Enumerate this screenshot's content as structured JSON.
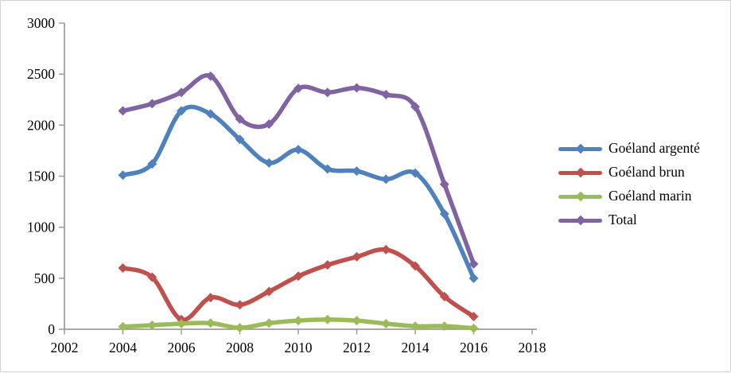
{
  "chart": {
    "background": "#ffffff",
    "border_color": "#d3d0d0",
    "axis_color": "#8c8c8c",
    "tick_color": "#9a9a9a",
    "label_color": "#000000"
  },
  "chart_data": {
    "type": "line",
    "smoothed": true,
    "marker": "diamond",
    "title": "",
    "xlabel": "",
    "ylabel": "",
    "grid": false,
    "legend_position": "right",
    "xlim": [
      2002,
      2018
    ],
    "ylim": [
      0,
      3000
    ],
    "x_ticks": [
      2002,
      2004,
      2006,
      2008,
      2010,
      2012,
      2014,
      2016,
      2018
    ],
    "y_ticks": [
      0,
      500,
      1000,
      1500,
      2000,
      2500,
      3000
    ],
    "x": [
      2004,
      2005,
      2006,
      2007,
      2008,
      2009,
      2010,
      2011,
      2012,
      2013,
      2014,
      2015,
      2016
    ],
    "series": [
      {
        "name": "Goéland argenté",
        "color": "#4F81BD",
        "values": [
          1510,
          1620,
          2140,
          2110,
          1860,
          1630,
          1760,
          1570,
          1550,
          1470,
          1530,
          1130,
          500
        ]
      },
      {
        "name": "Goéland brun",
        "color": "#C0504D",
        "values": [
          600,
          510,
          95,
          310,
          240,
          370,
          520,
          630,
          710,
          780,
          620,
          320,
          125
        ]
      },
      {
        "name": "Goéland marin",
        "color": "#9BBB59",
        "values": [
          25,
          40,
          55,
          60,
          15,
          60,
          85,
          95,
          85,
          55,
          30,
          30,
          10
        ]
      },
      {
        "name": "Total",
        "color": "#8064A2",
        "values": [
          2140,
          2210,
          2320,
          2480,
          2060,
          2010,
          2360,
          2320,
          2365,
          2300,
          2180,
          1420,
          640
        ]
      }
    ]
  }
}
